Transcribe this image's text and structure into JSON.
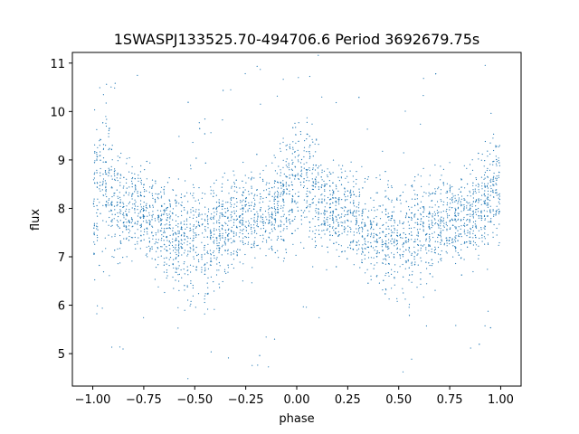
{
  "chart_data": {
    "type": "scatter",
    "title": "1SWASPJ133525.70-494706.6 Period 3692679.75s",
    "xlabel": "phase",
    "ylabel": "flux",
    "xlim": [
      -1.1,
      1.1
    ],
    "ylim": [
      4.33,
      11.22
    ],
    "xticks": [
      -1.0,
      -0.75,
      -0.5,
      -0.25,
      0.0,
      0.25,
      0.5,
      0.75,
      1.0
    ],
    "xtick_labels": [
      "−1.00",
      "−0.75",
      "−0.50",
      "−0.25",
      "0.00",
      "0.25",
      "0.50",
      "0.75",
      "1.00"
    ],
    "yticks": [
      5,
      6,
      7,
      8,
      9,
      10,
      11
    ],
    "ytick_labels": [
      "5",
      "6",
      "7",
      "8",
      "9",
      "10",
      "11"
    ],
    "grid": false,
    "marker_color": "#1f77b4",
    "series": [
      {
        "profile_phase": [
          -1.0,
          -0.95,
          -0.9,
          -0.85,
          -0.8,
          -0.75,
          -0.7,
          -0.65,
          -0.6,
          -0.55,
          -0.5,
          -0.45,
          -0.4,
          -0.35,
          -0.3,
          -0.25,
          -0.2,
          -0.15,
          -0.1,
          -0.05,
          0.0,
          0.05,
          0.1,
          0.15,
          0.2,
          0.25,
          0.3,
          0.35,
          0.4,
          0.45,
          0.5,
          0.55,
          0.6,
          0.65,
          0.7,
          0.75,
          0.8,
          0.85,
          0.9,
          0.95,
          1.0
        ],
        "profile_mean_flux": [
          8.0,
          8.6,
          8.2,
          7.9,
          8.0,
          7.9,
          7.7,
          7.6,
          7.4,
          7.3,
          7.4,
          7.3,
          7.5,
          7.6,
          7.7,
          7.8,
          7.8,
          7.9,
          8.0,
          8.3,
          8.6,
          8.5,
          8.2,
          7.9,
          8.0,
          7.9,
          7.7,
          7.6,
          7.4,
          7.3,
          7.4,
          7.3,
          7.5,
          7.6,
          7.7,
          7.8,
          7.8,
          7.9,
          8.0,
          8.3,
          8.4
        ],
        "profile_spread": [
          0.9,
          1.0,
          0.8,
          0.6,
          0.6,
          0.6,
          0.6,
          0.6,
          0.7,
          0.8,
          0.8,
          0.8,
          0.7,
          0.6,
          0.6,
          0.6,
          0.6,
          0.6,
          0.6,
          0.8,
          1.0,
          0.9,
          0.8,
          0.6,
          0.6,
          0.6,
          0.6,
          0.6,
          0.7,
          0.8,
          0.8,
          0.8,
          0.7,
          0.6,
          0.6,
          0.6,
          0.6,
          0.6,
          0.6,
          0.8,
          0.9
        ]
      }
    ]
  }
}
